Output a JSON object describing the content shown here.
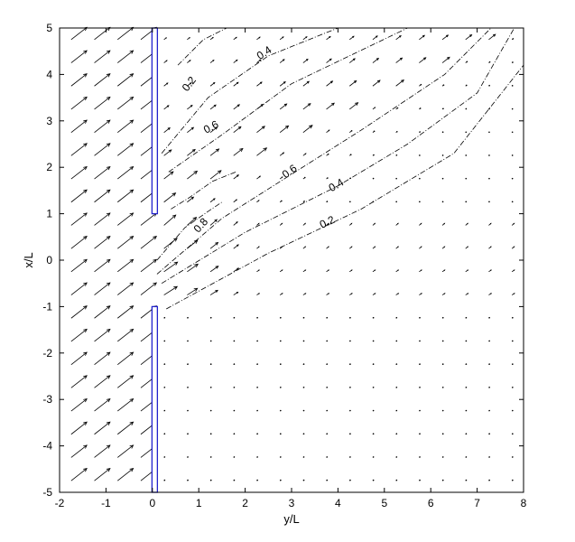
{
  "chart_data": {
    "type": "quiver-contour",
    "xlabel": "y/L",
    "ylabel": "x/L",
    "xlim": [
      -2,
      8
    ],
    "ylim": [
      -5,
      5
    ],
    "x_ticks": [
      "-2",
      "-1",
      "0",
      "1",
      "2",
      "3",
      "4",
      "5",
      "6",
      "7",
      "8"
    ],
    "y_ticks": [
      "-5",
      "-4",
      "-3",
      "-2",
      "-1",
      "0",
      "1",
      "2",
      "3",
      "4",
      "5"
    ],
    "grid": false,
    "barrier": {
      "y_position": 0.05,
      "segments": [
        [
          1,
          5
        ],
        [
          -5,
          -1
        ]
      ],
      "color": "#2222cc"
    },
    "vector_field": {
      "spacing": 0.5,
      "upstream_direction_deg": 38,
      "upstream_magnitude": 1.0
    },
    "contour_levels": [
      {
        "label": "0.8",
        "value": 0.8
      },
      {
        "label": "0.6",
        "value": 0.6
      },
      {
        "label": "0.6",
        "value": 0.6
      },
      {
        "label": "0.4",
        "value": 0.4
      },
      {
        "label": "0.4",
        "value": 0.4
      },
      {
        "label": "0.2",
        "value": 0.2
      },
      {
        "label": "0.2",
        "value": 0.2
      }
    ],
    "contours": [
      {
        "level": 0.2,
        "points": [
          [
            0.55,
            4.2
          ],
          [
            1.1,
            4.75
          ],
          [
            1.6,
            5.0
          ]
        ]
      },
      {
        "level": 0.4,
        "points": [
          [
            0.2,
            2.3
          ],
          [
            1.2,
            3.5
          ],
          [
            2.5,
            4.4
          ],
          [
            4.0,
            5.0
          ]
        ]
      },
      {
        "level": 0.6,
        "points": [
          [
            0.35,
            1.9
          ],
          [
            1.5,
            2.7
          ],
          [
            3.0,
            3.8
          ],
          [
            5.5,
            5.0
          ]
        ]
      },
      {
        "level": 0.8,
        "points": [
          [
            0.4,
            1.1
          ],
          [
            0.8,
            1.35
          ],
          [
            1.3,
            1.7
          ],
          [
            1.8,
            1.9
          ]
        ]
      },
      {
        "level": 0.8,
        "points": [
          [
            0.1,
            0.0
          ],
          [
            0.7,
            0.7
          ],
          [
            1.2,
            1.05
          ],
          [
            1.5,
            1.25
          ]
        ]
      },
      {
        "level": 0.6,
        "points": [
          [
            0.1,
            -0.3
          ],
          [
            1.5,
            0.9
          ],
          [
            3.0,
            1.85
          ],
          [
            4.5,
            2.8
          ],
          [
            6.3,
            4.0
          ],
          [
            7.3,
            5.0
          ]
        ]
      },
      {
        "level": 0.4,
        "points": [
          [
            0.2,
            -0.5
          ],
          [
            2.0,
            0.6
          ],
          [
            4.0,
            1.6
          ],
          [
            5.5,
            2.5
          ],
          [
            7.0,
            3.6
          ],
          [
            7.8,
            5.0
          ]
        ]
      },
      {
        "level": 0.2,
        "points": [
          [
            0.3,
            -1.05
          ],
          [
            2.5,
            0.15
          ],
          [
            4.5,
            1.1
          ],
          [
            6.5,
            2.3
          ],
          [
            8.0,
            4.2
          ]
        ]
      }
    ],
    "contour_label_marks": [
      {
        "text": "0.4",
        "x": 2.45,
        "y": 4.4,
        "rot": -33
      },
      {
        "text": "0.2",
        "x": 0.85,
        "y": 3.75,
        "rot": -52
      },
      {
        "text": "0.6",
        "x": 1.3,
        "y": 2.8,
        "rot": -28
      },
      {
        "text": "0.6",
        "x": 3.0,
        "y": 1.85,
        "rot": -36
      },
      {
        "text": "0.4",
        "x": 4.0,
        "y": 1.55,
        "rot": -30
      },
      {
        "text": "0.8",
        "x": 1.1,
        "y": 0.7,
        "rot": -48
      },
      {
        "text": "0.2",
        "x": 3.8,
        "y": 0.75,
        "rot": -25
      }
    ]
  }
}
